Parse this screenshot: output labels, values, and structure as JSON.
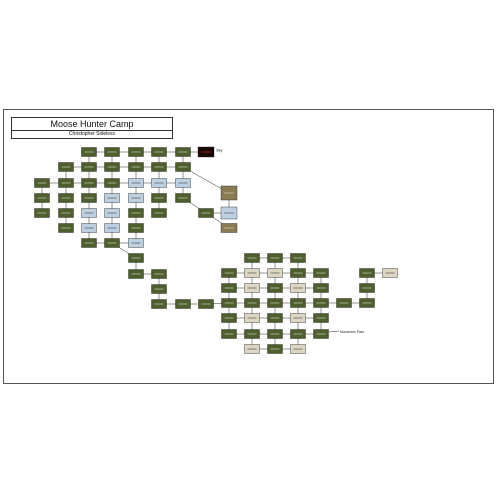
{
  "header": {
    "title": "Moose Hunter Camp",
    "subtitle": "Christopher Sideless"
  },
  "annotations": {
    "sky_label": "Sky",
    "red_node": "Mordor Gate",
    "moosehorn_label": "Moosehorn Pass"
  },
  "colors": {
    "dark_green": "#4e5e2c",
    "light_blue": "#bcd0e2",
    "tan": "#dcd6c2",
    "khaki": "#8a7c52",
    "red_text_box": "#180808",
    "red_text": "#e01818",
    "edge": "#2a2a2a"
  }
}
